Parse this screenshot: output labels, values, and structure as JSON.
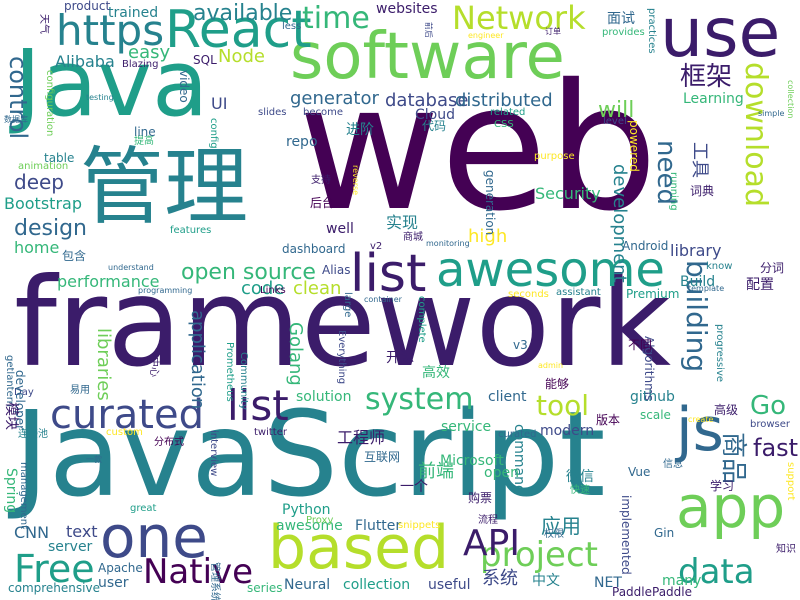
{
  "word_cloud": {
    "palette": {
      "dark_purple": "#440154",
      "indigo": "#3b1c6a",
      "blue": "#3e4a89",
      "slate": "#31688e",
      "teal": "#26828e",
      "green": "#1f9e89",
      "mint": "#35b779",
      "lime": "#6ece58",
      "yellow_green": "#b5de2b",
      "yellow": "#fde725"
    },
    "words": [
      {
        "text": "web"
      },
      {
        "text": "framework"
      },
      {
        "text": "JavaScript"
      },
      {
        "text": "Java"
      },
      {
        "text": "管理"
      },
      {
        "text": "software"
      },
      {
        "text": "use"
      },
      {
        "text": "React"
      },
      {
        "text": "https"
      },
      {
        "text": "app"
      },
      {
        "text": "js"
      },
      {
        "text": "based"
      },
      {
        "text": "one"
      },
      {
        "text": "list"
      },
      {
        "text": "awesome"
      },
      {
        "text": "curated"
      },
      {
        "text": "list"
      },
      {
        "text": "Free"
      },
      {
        "text": "Native"
      },
      {
        "text": "project"
      },
      {
        "text": "data"
      },
      {
        "text": "API"
      },
      {
        "text": "download"
      },
      {
        "text": "Network"
      },
      {
        "text": "time"
      },
      {
        "text": "system"
      },
      {
        "text": "control"
      },
      {
        "text": "框架"
      },
      {
        "text": "tool"
      },
      {
        "text": "Go"
      },
      {
        "text": "open source"
      },
      {
        "text": "design"
      },
      {
        "text": "deep"
      },
      {
        "text": "Node"
      },
      {
        "text": "database"
      },
      {
        "text": "distributed"
      },
      {
        "text": "generator"
      },
      {
        "text": "Alibaba"
      },
      {
        "text": "Bootstrap"
      },
      {
        "text": "home"
      },
      {
        "text": "need"
      },
      {
        "text": "building"
      },
      {
        "text": "development"
      },
      {
        "text": "performance"
      },
      {
        "text": "fast"
      },
      {
        "text": "商品"
      },
      {
        "text": "工具"
      },
      {
        "text": "Golang"
      },
      {
        "text": "application"
      },
      {
        "text": "libraries"
      },
      {
        "text": "Security"
      },
      {
        "text": "high"
      },
      {
        "text": "clean"
      },
      {
        "text": "code"
      },
      {
        "text": "Build"
      },
      {
        "text": "library"
      },
      {
        "text": "available"
      },
      {
        "text": "trained"
      },
      {
        "text": "websites"
      },
      {
        "text": "面试"
      },
      {
        "text": "easy"
      },
      {
        "text": "UI"
      },
      {
        "text": "will"
      },
      {
        "text": "Learning"
      },
      {
        "text": "CNN"
      },
      {
        "text": "text"
      },
      {
        "text": "Flutter"
      },
      {
        "text": "Android"
      },
      {
        "text": "github"
      },
      {
        "text": "Algorithms"
      },
      {
        "text": "Premium"
      },
      {
        "text": "工程师"
      },
      {
        "text": "前端"
      },
      {
        "text": "应用"
      },
      {
        "text": "中文"
      },
      {
        "text": "系统"
      },
      {
        "text": "collection"
      },
      {
        "text": "useful"
      },
      {
        "text": "Neural"
      },
      {
        "text": "Python"
      },
      {
        "text": "solution"
      },
      {
        "text": "client"
      },
      {
        "text": "service"
      },
      {
        "text": "modern"
      },
      {
        "text": "command"
      },
      {
        "text": "open"
      },
      {
        "text": "Spring"
      },
      {
        "text": "awesome"
      },
      {
        "text": "server"
      },
      {
        "text": "user"
      },
      {
        "text": "Apache"
      },
      {
        "text": "comprehensive"
      },
      {
        "text": "series"
      },
      {
        "text": "NET"
      },
      {
        "text": "many"
      },
      {
        "text": "PaddlePaddle"
      },
      {
        "text": "Microsoft"
      },
      {
        "text": "Links"
      },
      {
        "text": "well"
      },
      {
        "text": "dashboard"
      },
      {
        "text": "repo"
      },
      {
        "text": "进阶"
      },
      {
        "text": "代码"
      },
      {
        "text": "Cloud"
      },
      {
        "text": "实现"
      },
      {
        "text": "后台"
      },
      {
        "text": "开源"
      },
      {
        "text": "高效"
      },
      {
        "text": "能够"
      },
      {
        "text": "分词"
      },
      {
        "text": "配置"
      },
      {
        "text": "学习"
      },
      {
        "text": "微信"
      },
      {
        "text": "购票"
      },
      {
        "text": "一个"
      },
      {
        "text": "互联网"
      },
      {
        "text": "高级"
      },
      {
        "text": "版本"
      },
      {
        "text": "不同"
      },
      {
        "text": "词典"
      },
      {
        "text": "Gin"
      },
      {
        "text": "Vue"
      },
      {
        "text": "implemented"
      },
      {
        "text": "v3"
      },
      {
        "text": "scale"
      },
      {
        "text": "browser"
      },
      {
        "text": "twitter"
      },
      {
        "text": "Day"
      },
      {
        "text": "developer"
      },
      {
        "text": "getlantern"
      },
      {
        "text": "模块"
      },
      {
        "text": "连接池"
      },
      {
        "text": "分布式"
      },
      {
        "text": "custom"
      },
      {
        "text": "interview"
      },
      {
        "text": "management"
      },
      {
        "text": "great"
      },
      {
        "text": "snippets"
      },
      {
        "text": "Proxy"
      },
      {
        "text": "curated"
      },
      {
        "text": "流程"
      },
      {
        "text": "权限"
      },
      {
        "text": "快速"
      },
      {
        "text": "信息"
      },
      {
        "text": "知识"
      },
      {
        "text": "support"
      },
      {
        "text": "create"
      },
      {
        "text": "admin"
      },
      {
        "text": "Community"
      },
      {
        "text": "Prometheus"
      },
      {
        "text": "Everything"
      },
      {
        "text": "large"
      },
      {
        "text": "container"
      },
      {
        "text": "complete"
      },
      {
        "text": "seconds"
      },
      {
        "text": "assistant"
      },
      {
        "text": "template"
      },
      {
        "text": "know"
      },
      {
        "text": "progressive"
      },
      {
        "text": "powered"
      },
      {
        "text": "level"
      },
      {
        "text": "simple"
      },
      {
        "text": "collection"
      },
      {
        "text": "practices"
      },
      {
        "text": "provides"
      },
      {
        "text": "订单"
      },
      {
        "text": "engineer"
      },
      {
        "text": "前后"
      },
      {
        "text": "less"
      },
      {
        "text": "product"
      },
      {
        "text": "Blazing"
      },
      {
        "text": "SQL"
      },
      {
        "text": "video"
      },
      {
        "text": "configuration"
      },
      {
        "text": "testing"
      },
      {
        "text": "数据库"
      },
      {
        "text": "提高"
      },
      {
        "text": "animation"
      },
      {
        "text": "table"
      },
      {
        "text": "line"
      },
      {
        "text": "config"
      },
      {
        "text": "slides"
      },
      {
        "text": "become"
      },
      {
        "text": "related"
      },
      {
        "text": "CSS"
      },
      {
        "text": "purpose"
      },
      {
        "text": "running"
      },
      {
        "text": "reverse"
      },
      {
        "text": "支持"
      },
      {
        "text": "商城"
      },
      {
        "text": "monitoring"
      },
      {
        "text": "v2"
      },
      {
        "text": "Alias"
      },
      {
        "text": "包含"
      },
      {
        "text": "features"
      },
      {
        "text": "understand"
      },
      {
        "text": "programming"
      },
      {
        "text": "易用"
      },
      {
        "text": "中心"
      },
      {
        "text": "一款"
      },
      {
        "text": "管理系统"
      },
      {
        "text": "generation"
      },
      {
        "text": "天气"
      }
    ]
  }
}
